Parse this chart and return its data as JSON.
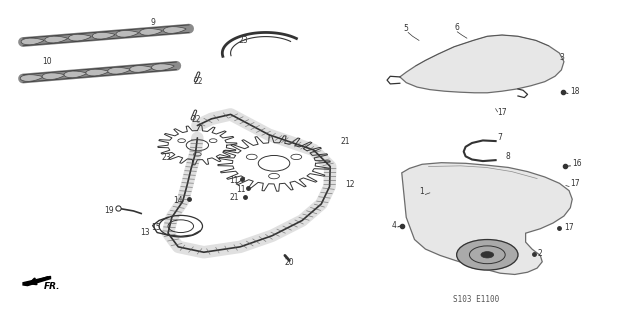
{
  "title": "",
  "background_color": "#ffffff",
  "diagram_code": "S103 E1100",
  "fig_width": 6.4,
  "fig_height": 3.19,
  "dpi": 100,
  "arrow_label": "FR.",
  "diagram_ref": "S103 E1100"
}
